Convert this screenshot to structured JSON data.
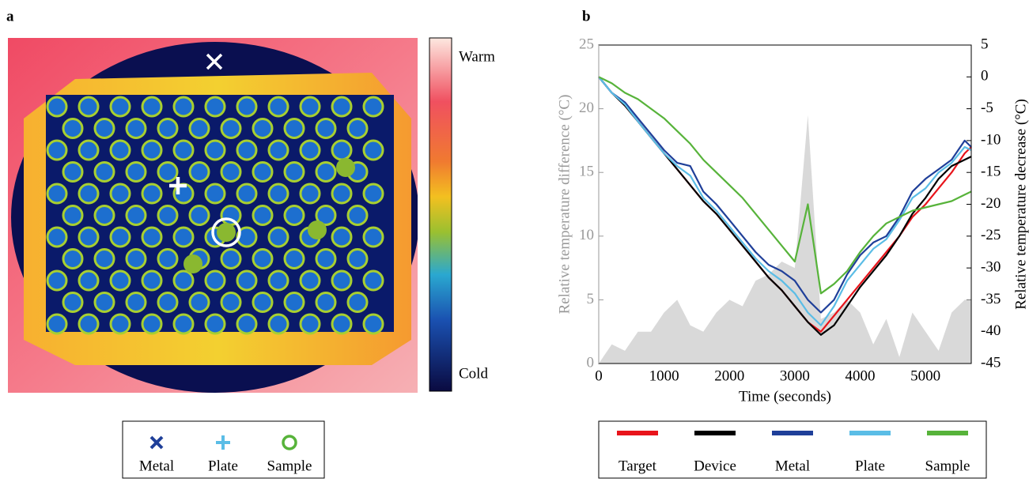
{
  "panel_a": {
    "label": "a",
    "colorbar": {
      "top": "Warm",
      "bottom": "Cold"
    },
    "legend": [
      {
        "name": "Metal",
        "marker": "x",
        "color": "#1f3f99"
      },
      {
        "name": "Plate",
        "marker": "plus",
        "color": "#5bbde6"
      },
      {
        "name": "Sample",
        "marker": "circle",
        "color": "#57b33a"
      }
    ]
  },
  "chart_data": {
    "type": "line",
    "label": "b",
    "xlabel": "Time (seconds)",
    "ylabel": "Relative temperature difference (°C)",
    "y2label": "Relative temperature decrease (°C)",
    "x": [
      0,
      200,
      400,
      600,
      800,
      1000,
      1200,
      1400,
      1600,
      1800,
      2000,
      2200,
      2400,
      2600,
      2800,
      3000,
      3200,
      3400,
      3600,
      3800,
      4000,
      4200,
      4400,
      4600,
      4800,
      5000,
      5200,
      5400,
      5600,
      5700
    ],
    "xlim": [
      0,
      5700
    ],
    "xticks": [
      0,
      1000,
      2000,
      3000,
      4000,
      5000
    ],
    "ylim": [
      0,
      25
    ],
    "yticks": [
      0,
      5,
      10,
      15,
      20,
      25
    ],
    "y2lim": [
      -45,
      5
    ],
    "y2ticks": [
      -45,
      -40,
      -35,
      -30,
      -25,
      -20,
      -15,
      -10,
      -5,
      0,
      5
    ],
    "series": [
      {
        "color": "#d9d9d9",
        "fill": true,
        "axis": "y",
        "values": [
          0,
          1.5,
          1,
          2.5,
          2.5,
          4,
          5,
          3,
          2.5,
          4,
          5,
          4.5,
          6.5,
          7,
          8,
          7.5,
          19.5,
          3.5,
          4,
          5,
          4,
          1.5,
          3.5,
          0.5,
          4,
          2.5,
          1,
          4,
          5,
          5
        ]
      },
      {
        "name": "Target",
        "color": "#e8141b",
        "axis": "y2",
        "values": [
          0,
          -2.5,
          -4.5,
          -7,
          -9.5,
          -12,
          -14.5,
          -17,
          -19.5,
          -21.5,
          -24,
          -26.5,
          -29,
          -31.5,
          -33.5,
          -36,
          -38.5,
          -40,
          -37.5,
          -35,
          -32.5,
          -30,
          -27.5,
          -25,
          -22,
          -20,
          -17.5,
          -15,
          -12,
          -11
        ]
      },
      {
        "name": "Device",
        "color": "#000000",
        "axis": "y2",
        "values": [
          0,
          -2.5,
          -4.5,
          -7,
          -9.5,
          -12,
          -14.5,
          -17,
          -19.5,
          -21.5,
          -24,
          -26.5,
          -29,
          -31.5,
          -33.5,
          -36,
          -38.5,
          -40.5,
          -39,
          -36,
          -33,
          -30.5,
          -28,
          -25,
          -21.5,
          -19,
          -16,
          -14,
          -13,
          -12.5
        ]
      },
      {
        "name": "Metal",
        "color": "#1f3f99",
        "axis": "y2",
        "values": [
          0,
          -2.5,
          -4,
          -6.5,
          -9,
          -11.5,
          -13.5,
          -14,
          -18,
          -20,
          -22.5,
          -25,
          -27.5,
          -29.5,
          -30.5,
          -32,
          -35,
          -37,
          -35,
          -31,
          -28,
          -26,
          -25,
          -22,
          -18,
          -16,
          -14.5,
          -13,
          -10,
          -11
        ]
      },
      {
        "name": "Plate",
        "color": "#5bbde6",
        "axis": "y2",
        "values": [
          0,
          -2.5,
          -4.3,
          -7,
          -9.5,
          -12,
          -14,
          -15.5,
          -19,
          -21,
          -23.5,
          -26,
          -28.5,
          -30.5,
          -32,
          -34,
          -37,
          -39,
          -36,
          -32,
          -29.5,
          -27,
          -25.5,
          -22.5,
          -19,
          -17.5,
          -15,
          -13.5,
          -11,
          -11.5
        ]
      },
      {
        "name": "Sample",
        "color": "#57b33a",
        "axis": "y2",
        "values": [
          0,
          -1,
          -2.5,
          -3.5,
          -5,
          -6.5,
          -8.5,
          -10.5,
          -13,
          -15,
          -17,
          -19,
          -21.5,
          -24,
          -26.5,
          -29,
          -20,
          -34,
          -32.5,
          -30.5,
          -27.5,
          -25,
          -23,
          -22,
          -21,
          -20.5,
          -20,
          -19.5,
          -18.5,
          -18
        ]
      }
    ]
  }
}
